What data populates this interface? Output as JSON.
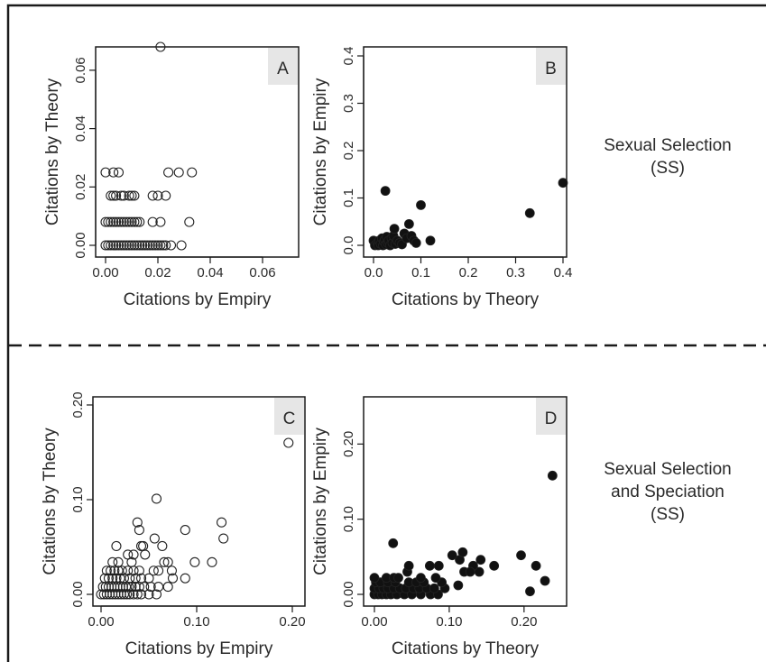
{
  "chart_data": [
    {
      "id": "A",
      "type": "scatter",
      "panel_label": "A",
      "xlabel": "Citations by Empiry",
      "ylabel": "Citations by Theory",
      "xlim": [
        0,
        0.07
      ],
      "ylim": [
        0,
        0.068
      ],
      "xticks": [
        "0.00",
        "0.02",
        "0.04",
        "0.06"
      ],
      "yticks": [
        "0.00",
        "0.02",
        "0.04",
        "0.06"
      ],
      "xtick_values": [
        0,
        0.02,
        0.04,
        0.06
      ],
      "ytick_values": [
        0,
        0.02,
        0.04,
        0.06
      ],
      "marker": "open-circle",
      "points": [
        [
          0.0,
          0.025
        ],
        [
          0.003,
          0.025
        ],
        [
          0.005,
          0.025
        ],
        [
          0.024,
          0.025
        ],
        [
          0.028,
          0.025
        ],
        [
          0.033,
          0.025
        ],
        [
          0.002,
          0.017
        ],
        [
          0.003,
          0.017
        ],
        [
          0.004,
          0.017
        ],
        [
          0.006,
          0.017
        ],
        [
          0.007,
          0.017
        ],
        [
          0.009,
          0.017
        ],
        [
          0.01,
          0.017
        ],
        [
          0.011,
          0.017
        ],
        [
          0.018,
          0.017
        ],
        [
          0.02,
          0.017
        ],
        [
          0.023,
          0.017
        ],
        [
          0.0,
          0.008
        ],
        [
          0.001,
          0.008
        ],
        [
          0.002,
          0.008
        ],
        [
          0.003,
          0.008
        ],
        [
          0.004,
          0.008
        ],
        [
          0.005,
          0.008
        ],
        [
          0.006,
          0.008
        ],
        [
          0.007,
          0.008
        ],
        [
          0.008,
          0.008
        ],
        [
          0.009,
          0.008
        ],
        [
          0.01,
          0.008
        ],
        [
          0.011,
          0.008
        ],
        [
          0.012,
          0.008
        ],
        [
          0.013,
          0.008
        ],
        [
          0.018,
          0.008
        ],
        [
          0.021,
          0.008
        ],
        [
          0.032,
          0.008
        ],
        [
          0.0,
          0.0
        ],
        [
          0.001,
          0.0
        ],
        [
          0.002,
          0.0
        ],
        [
          0.003,
          0.0
        ],
        [
          0.004,
          0.0
        ],
        [
          0.005,
          0.0
        ],
        [
          0.006,
          0.0
        ],
        [
          0.007,
          0.0
        ],
        [
          0.008,
          0.0
        ],
        [
          0.009,
          0.0
        ],
        [
          0.01,
          0.0
        ],
        [
          0.011,
          0.0
        ],
        [
          0.012,
          0.0
        ],
        [
          0.013,
          0.0
        ],
        [
          0.014,
          0.0
        ],
        [
          0.015,
          0.0
        ],
        [
          0.016,
          0.0
        ],
        [
          0.017,
          0.0
        ],
        [
          0.018,
          0.0
        ],
        [
          0.019,
          0.0
        ],
        [
          0.02,
          0.0
        ],
        [
          0.021,
          0.0
        ],
        [
          0.022,
          0.0
        ],
        [
          0.023,
          0.0
        ],
        [
          0.025,
          0.0
        ],
        [
          0.029,
          0.0
        ],
        [
          0.021,
          0.068
        ]
      ]
    },
    {
      "id": "B",
      "type": "scatter",
      "panel_label": "B",
      "xlabel": "Citations by Theory",
      "ylabel": "Citations by Empiry",
      "xlim": [
        0,
        0.4
      ],
      "ylim": [
        0,
        0.4
      ],
      "xticks": [
        "0.0",
        "0.1",
        "0.2",
        "0.3",
        "0.4"
      ],
      "yticks": [
        "0.0",
        "0.1",
        "0.2",
        "0.3",
        "0.4"
      ],
      "xtick_values": [
        0,
        0.1,
        0.2,
        0.3,
        0.4
      ],
      "ytick_values": [
        0,
        0.1,
        0.2,
        0.3,
        0.4
      ],
      "marker": "filled-circle",
      "points": [
        [
          0.0,
          0.01
        ],
        [
          0.003,
          0.0
        ],
        [
          0.008,
          0.005
        ],
        [
          0.01,
          0.0
        ],
        [
          0.012,
          0.01
        ],
        [
          0.015,
          0.003
        ],
        [
          0.018,
          0.015
        ],
        [
          0.02,
          0.0
        ],
        [
          0.022,
          0.008
        ],
        [
          0.024,
          0.012
        ],
        [
          0.026,
          0.002
        ],
        [
          0.028,
          0.018
        ],
        [
          0.03,
          0.005
        ],
        [
          0.032,
          0.01
        ],
        [
          0.035,
          0.0
        ],
        [
          0.038,
          0.015
        ],
        [
          0.04,
          0.005
        ],
        [
          0.042,
          0.02
        ],
        [
          0.044,
          0.035
        ],
        [
          0.046,
          0.003
        ],
        [
          0.05,
          0.01
        ],
        [
          0.055,
          0.005
        ],
        [
          0.06,
          0.002
        ],
        [
          0.065,
          0.025
        ],
        [
          0.07,
          0.015
        ],
        [
          0.075,
          0.045
        ],
        [
          0.08,
          0.02
        ],
        [
          0.085,
          0.01
        ],
        [
          0.09,
          0.005
        ],
        [
          0.025,
          0.115
        ],
        [
          0.1,
          0.085
        ],
        [
          0.12,
          0.01
        ],
        [
          0.33,
          0.068
        ],
        [
          0.4,
          0.132
        ]
      ]
    },
    {
      "id": "C",
      "type": "scatter",
      "panel_label": "C",
      "xlabel": "Citations by Empiry",
      "ylabel": "Citations by Theory",
      "xlim": [
        0,
        0.2
      ],
      "ylim": [
        0,
        0.2
      ],
      "xticks": [
        "0.00",
        "0.10",
        "0.20"
      ],
      "yticks": [
        "0.00",
        "0.10",
        "0.20"
      ],
      "xtick_values": [
        0,
        0.1,
        0.2
      ],
      "ytick_values": [
        0,
        0.1,
        0.2
      ],
      "marker": "open-circle",
      "points": [
        [
          0.0,
          0.0
        ],
        [
          0.003,
          0.0
        ],
        [
          0.006,
          0.0
        ],
        [
          0.009,
          0.0
        ],
        [
          0.012,
          0.0
        ],
        [
          0.015,
          0.0
        ],
        [
          0.018,
          0.0
        ],
        [
          0.021,
          0.0
        ],
        [
          0.024,
          0.0
        ],
        [
          0.027,
          0.0
        ],
        [
          0.03,
          0.0
        ],
        [
          0.034,
          0.0
        ],
        [
          0.038,
          0.0
        ],
        [
          0.042,
          0.0
        ],
        [
          0.05,
          0.0
        ],
        [
          0.058,
          0.0
        ],
        [
          0.002,
          0.008
        ],
        [
          0.005,
          0.008
        ],
        [
          0.008,
          0.008
        ],
        [
          0.011,
          0.008
        ],
        [
          0.014,
          0.008
        ],
        [
          0.017,
          0.008
        ],
        [
          0.02,
          0.008
        ],
        [
          0.023,
          0.008
        ],
        [
          0.026,
          0.008
        ],
        [
          0.029,
          0.008
        ],
        [
          0.032,
          0.008
        ],
        [
          0.036,
          0.008
        ],
        [
          0.04,
          0.008
        ],
        [
          0.045,
          0.008
        ],
        [
          0.052,
          0.008
        ],
        [
          0.06,
          0.008
        ],
        [
          0.07,
          0.008
        ],
        [
          0.004,
          0.017
        ],
        [
          0.008,
          0.017
        ],
        [
          0.012,
          0.017
        ],
        [
          0.016,
          0.017
        ],
        [
          0.02,
          0.017
        ],
        [
          0.024,
          0.017
        ],
        [
          0.03,
          0.017
        ],
        [
          0.036,
          0.017
        ],
        [
          0.042,
          0.017
        ],
        [
          0.05,
          0.017
        ],
        [
          0.075,
          0.017
        ],
        [
          0.088,
          0.017
        ],
        [
          0.006,
          0.025
        ],
        [
          0.01,
          0.025
        ],
        [
          0.014,
          0.025
        ],
        [
          0.018,
          0.025
        ],
        [
          0.022,
          0.025
        ],
        [
          0.028,
          0.025
        ],
        [
          0.034,
          0.025
        ],
        [
          0.04,
          0.025
        ],
        [
          0.055,
          0.025
        ],
        [
          0.06,
          0.025
        ],
        [
          0.074,
          0.025
        ],
        [
          0.012,
          0.034
        ],
        [
          0.018,
          0.034
        ],
        [
          0.032,
          0.034
        ],
        [
          0.066,
          0.034
        ],
        [
          0.07,
          0.034
        ],
        [
          0.098,
          0.034
        ],
        [
          0.116,
          0.034
        ],
        [
          0.028,
          0.042
        ],
        [
          0.034,
          0.042
        ],
        [
          0.046,
          0.042
        ],
        [
          0.016,
          0.051
        ],
        [
          0.042,
          0.051
        ],
        [
          0.044,
          0.051
        ],
        [
          0.064,
          0.051
        ],
        [
          0.056,
          0.059
        ],
        [
          0.128,
          0.059
        ],
        [
          0.04,
          0.068
        ],
        [
          0.088,
          0.068
        ],
        [
          0.038,
          0.076
        ],
        [
          0.126,
          0.076
        ],
        [
          0.058,
          0.101
        ],
        [
          0.196,
          0.16
        ]
      ]
    },
    {
      "id": "D",
      "type": "scatter",
      "panel_label": "D",
      "xlabel": "Citations by Theory",
      "ylabel": "Citations by Empiry",
      "xlim": [
        0,
        0.24
      ],
      "ylim": [
        0,
        0.24
      ],
      "xticks": [
        "0.00",
        "0.10",
        "0.20"
      ],
      "yticks": [
        "0.00",
        "0.10",
        "0.20"
      ],
      "xtick_values": [
        0,
        0.1,
        0.2
      ],
      "ytick_values": [
        0,
        0.1,
        0.2
      ],
      "marker": "filled-circle",
      "points": [
        [
          0.0,
          0.0
        ],
        [
          0.005,
          0.0
        ],
        [
          0.01,
          0.0
        ],
        [
          0.016,
          0.0
        ],
        [
          0.022,
          0.0
        ],
        [
          0.03,
          0.0
        ],
        [
          0.04,
          0.0
        ],
        [
          0.05,
          0.0
        ],
        [
          0.062,
          0.0
        ],
        [
          0.075,
          0.0
        ],
        [
          0.085,
          0.0
        ],
        [
          0.0,
          0.008
        ],
        [
          0.006,
          0.008
        ],
        [
          0.012,
          0.008
        ],
        [
          0.018,
          0.008
        ],
        [
          0.026,
          0.008
        ],
        [
          0.034,
          0.008
        ],
        [
          0.042,
          0.008
        ],
        [
          0.052,
          0.008
        ],
        [
          0.06,
          0.008
        ],
        [
          0.07,
          0.008
        ],
        [
          0.08,
          0.008
        ],
        [
          0.094,
          0.008
        ],
        [
          0.002,
          0.016
        ],
        [
          0.008,
          0.016
        ],
        [
          0.018,
          0.016
        ],
        [
          0.028,
          0.016
        ],
        [
          0.046,
          0.016
        ],
        [
          0.056,
          0.016
        ],
        [
          0.066,
          0.016
        ],
        [
          0.09,
          0.016
        ],
        [
          0.0,
          0.022
        ],
        [
          0.016,
          0.022
        ],
        [
          0.026,
          0.022
        ],
        [
          0.032,
          0.022
        ],
        [
          0.062,
          0.022
        ],
        [
          0.082,
          0.022
        ],
        [
          0.044,
          0.03
        ],
        [
          0.12,
          0.03
        ],
        [
          0.14,
          0.03
        ],
        [
          0.046,
          0.038
        ],
        [
          0.074,
          0.038
        ],
        [
          0.086,
          0.038
        ],
        [
          0.132,
          0.038
        ],
        [
          0.16,
          0.038
        ],
        [
          0.216,
          0.038
        ],
        [
          0.114,
          0.046
        ],
        [
          0.142,
          0.046
        ],
        [
          0.104,
          0.052
        ],
        [
          0.196,
          0.052
        ],
        [
          0.118,
          0.056
        ],
        [
          0.128,
          0.03
        ],
        [
          0.025,
          0.068
        ],
        [
          0.112,
          0.012
        ],
        [
          0.208,
          0.004
        ],
        [
          0.228,
          0.018
        ],
        [
          0.238,
          0.158
        ]
      ]
    }
  ],
  "row_labels": {
    "top": [
      "Sexual Selection",
      "(SS)"
    ],
    "bottom": [
      "Sexual Selection",
      "and Speciation",
      "(SS)"
    ]
  }
}
